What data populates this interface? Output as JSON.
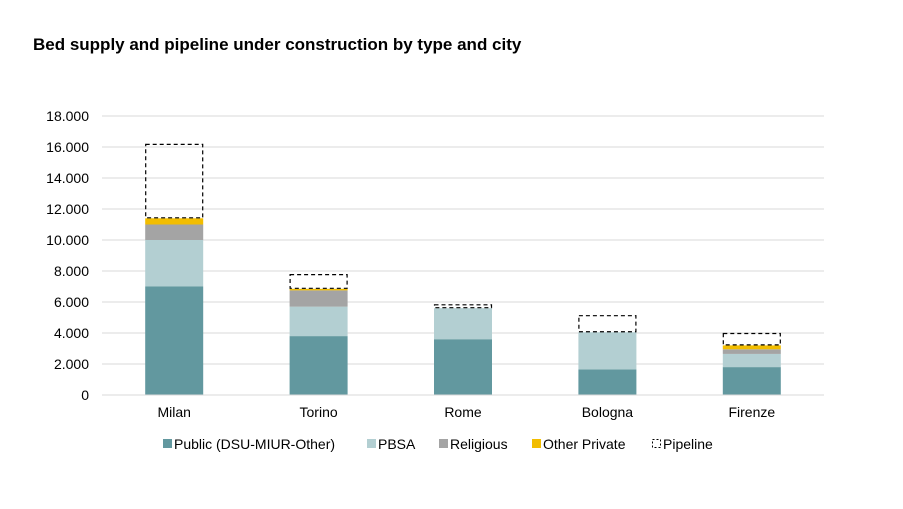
{
  "chart_data": {
    "type": "bar",
    "stacked": true,
    "title": "Bed supply and pipeline under construction by type and city",
    "xlabel": "",
    "ylabel": "",
    "categories": [
      "Milan",
      "Torino",
      "Rome",
      "Bologna",
      "Firenze"
    ],
    "series": [
      {
        "name": "Public (DSU-MIUR-Other)",
        "color": "#62989f",
        "style": "solid",
        "values": [
          7000,
          3800,
          3600,
          1650,
          1800
        ]
      },
      {
        "name": "PBSA",
        "color": "#b3cfd2",
        "style": "solid",
        "values": [
          3000,
          1900,
          2000,
          2400,
          850
        ]
      },
      {
        "name": "Religious",
        "color": "#a4a4a4",
        "style": "solid",
        "values": [
          1000,
          1050,
          0,
          0,
          300
        ]
      },
      {
        "name": "Other Private",
        "color": "#f2bd00",
        "style": "solid",
        "values": [
          400,
          100,
          0,
          0,
          250
        ]
      },
      {
        "name": "Pipeline",
        "color": "#000000",
        "style": "dashed",
        "values": [
          4800,
          950,
          250,
          1100,
          800
        ]
      }
    ],
    "y_ticks": [
      "0",
      "2.000",
      "4.000",
      "6.000",
      "8.000",
      "10.000",
      "12.000",
      "14.000",
      "16.000",
      "18.000"
    ],
    "ylim": [
      0,
      18000
    ],
    "grid": true,
    "legend_position": "bottom"
  }
}
